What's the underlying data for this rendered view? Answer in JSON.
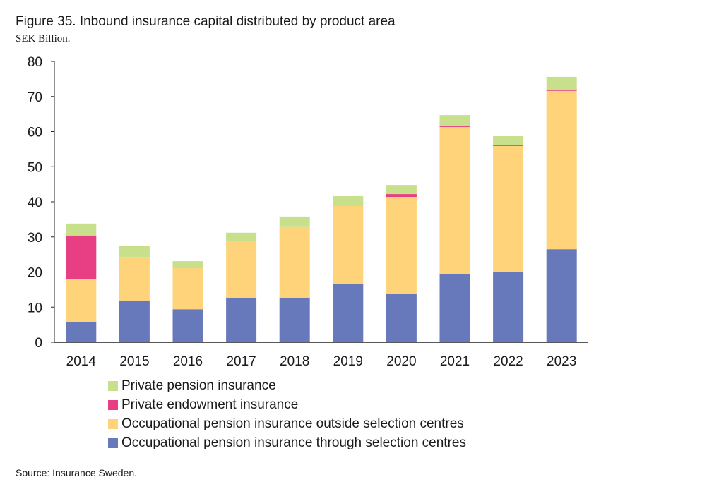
{
  "title": "Figure 35. Inbound insurance capital distributed by product area",
  "subtitle": "SEK Billion.",
  "source": "Source: Insurance Sweden.",
  "chart_data": {
    "type": "bar",
    "stacked": true,
    "categories": [
      "2014",
      "2015",
      "2016",
      "2017",
      "2018",
      "2019",
      "2020",
      "2021",
      "2022",
      "2023"
    ],
    "ylim": [
      0,
      80
    ],
    "yticks": [
      0,
      10,
      20,
      30,
      40,
      50,
      60,
      70,
      80
    ],
    "grid": false,
    "legend_position": "bottom",
    "series": [
      {
        "name": "Occupational pension insurance through selection centres",
        "color": "#6779bb",
        "values": [
          5.8,
          11.9,
          9.4,
          12.7,
          12.7,
          16.5,
          13.9,
          19.5,
          20.1,
          26.5
        ]
      },
      {
        "name": "Occupational pension insurance outside selection centres",
        "color": "#fed37a",
        "values": [
          12.1,
          12.4,
          11.7,
          16.2,
          20.3,
          22.3,
          27.5,
          41.8,
          35.8,
          45.1
        ]
      },
      {
        "name": "Private endowment insurance",
        "color": "#e83e84",
        "values": [
          12.5,
          0,
          0,
          0,
          0,
          0,
          0.8,
          0.2,
          0.2,
          0.4
        ]
      },
      {
        "name": "Private pension insurance",
        "color": "#c8df8c",
        "values": [
          3.4,
          3.2,
          2.0,
          2.3,
          2.8,
          2.8,
          2.6,
          3.2,
          2.6,
          3.6
        ]
      }
    ]
  }
}
